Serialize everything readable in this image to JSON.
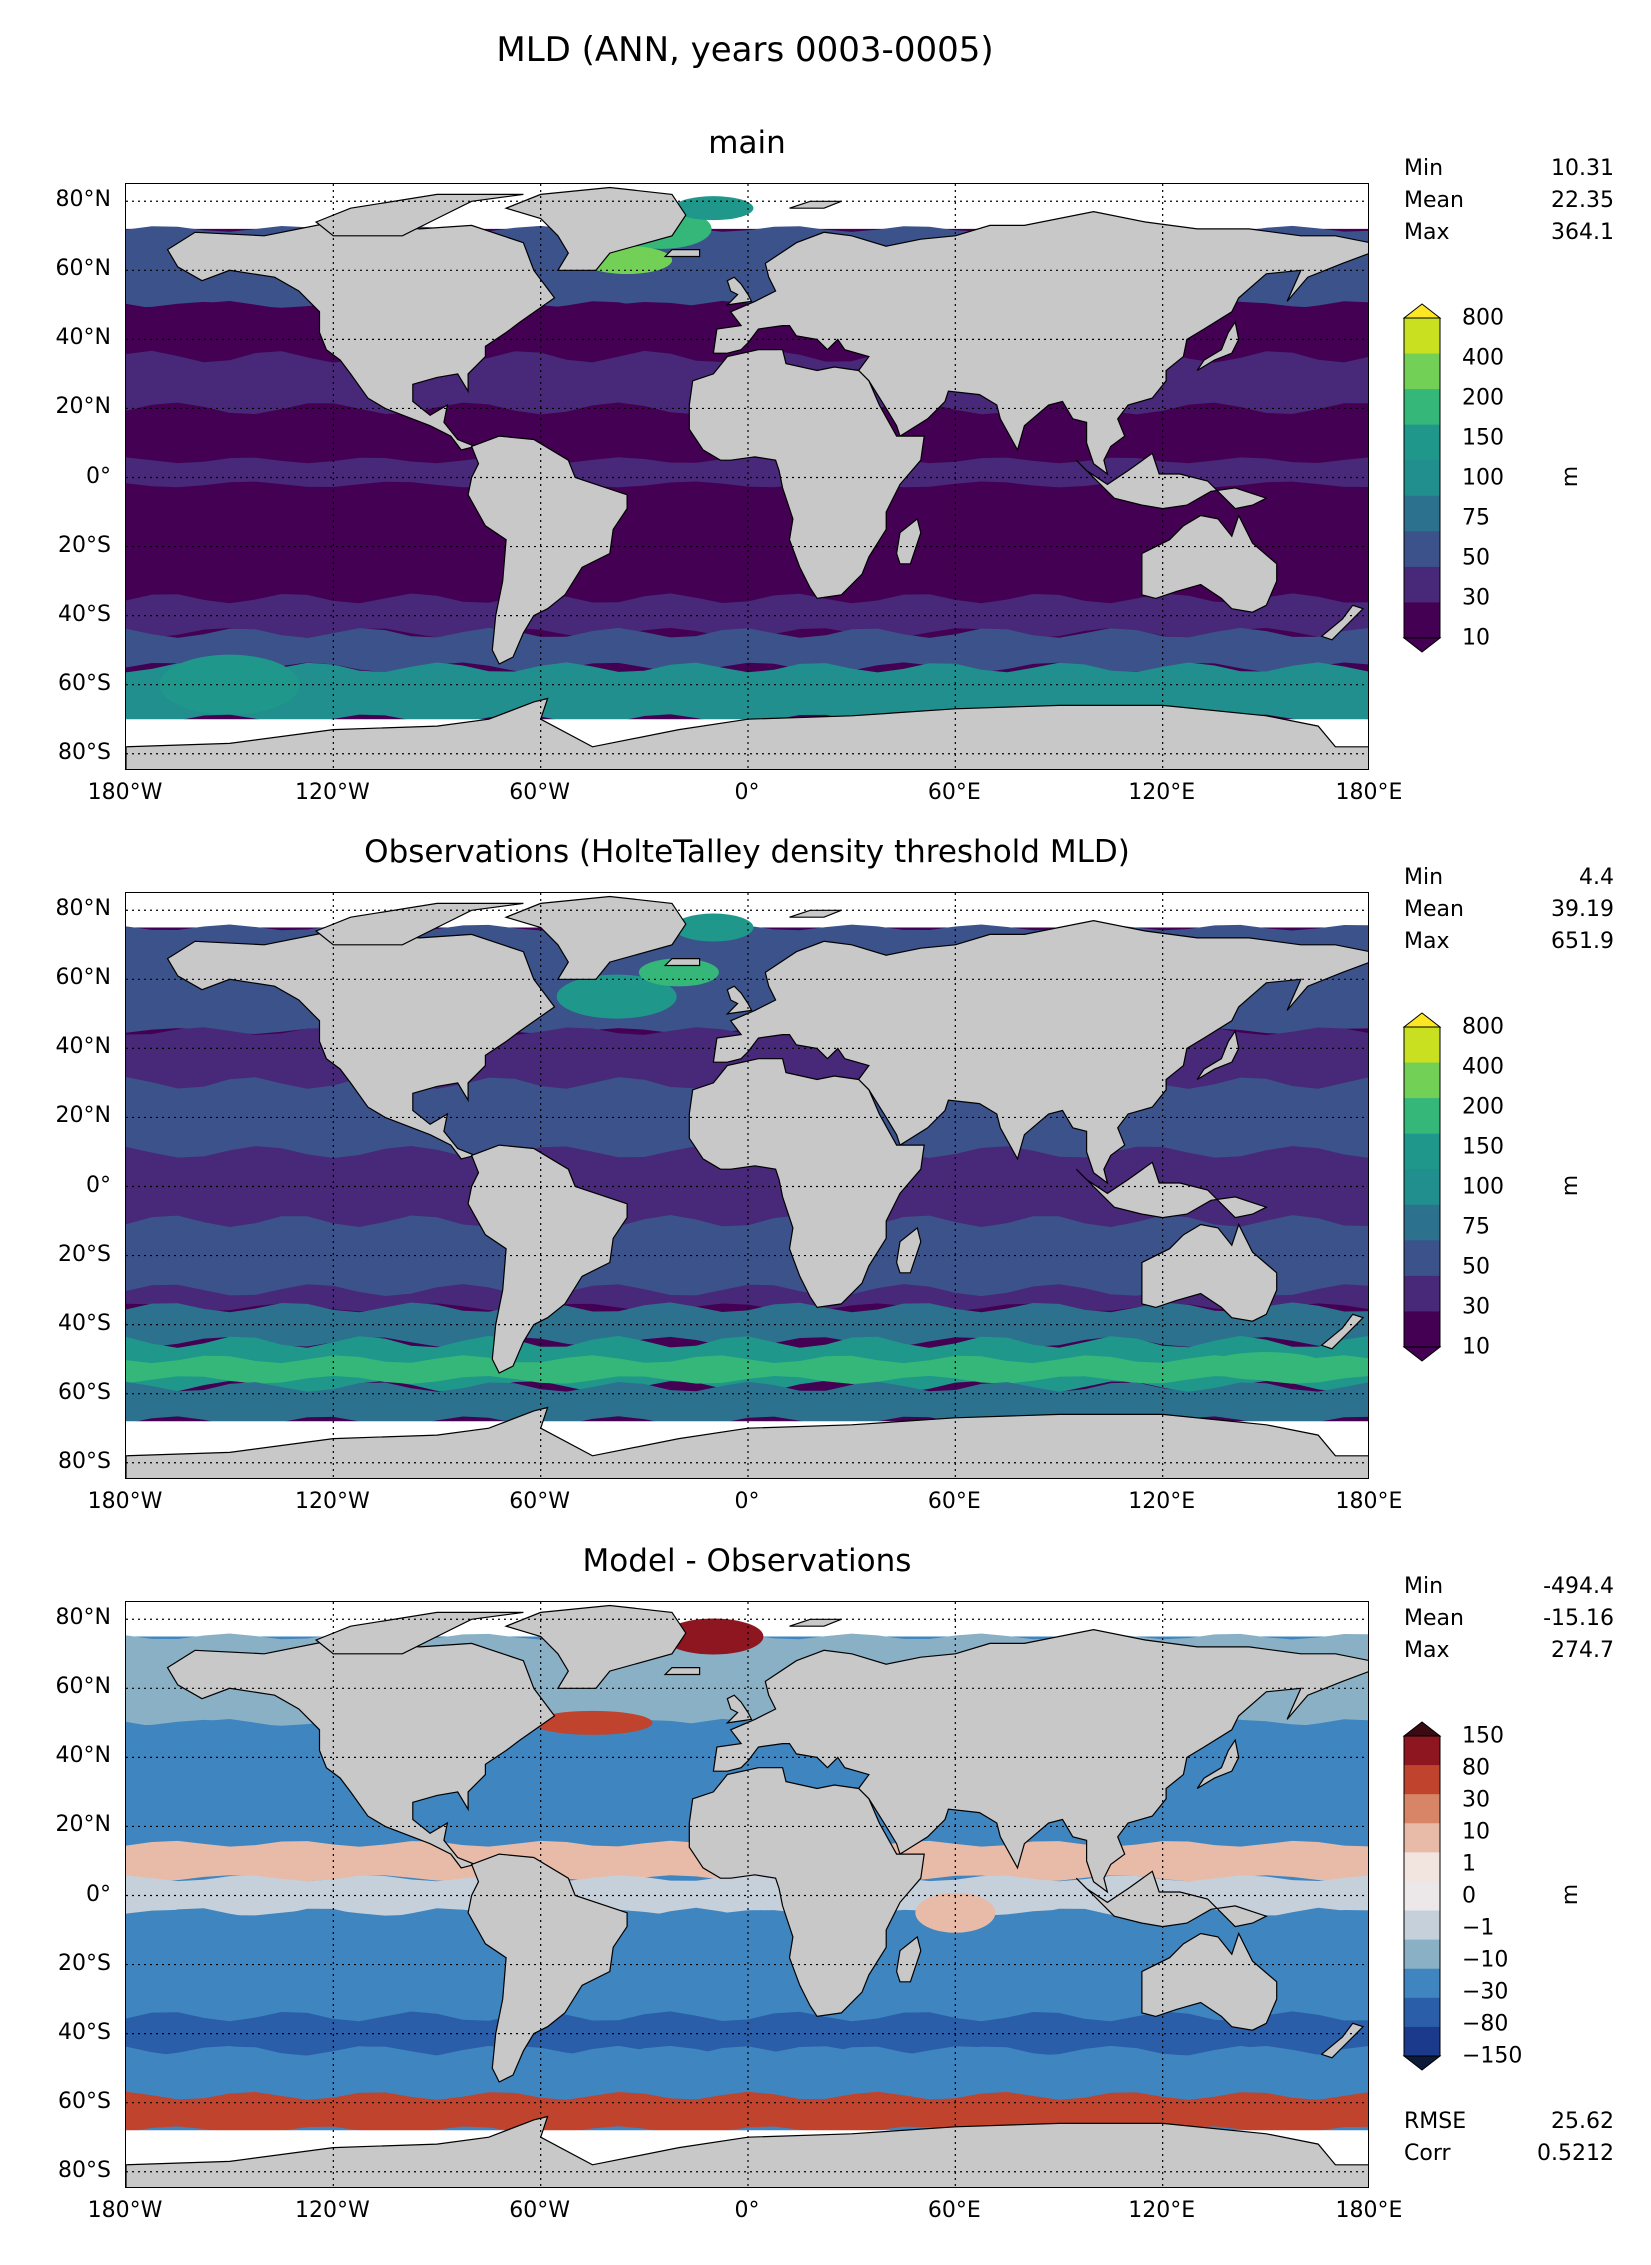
{
  "suptitle": "MLD (ANN, years 0003-0005)",
  "lat_labels": [
    "80°N",
    "60°N",
    "40°N",
    "20°N",
    "0°",
    "20°S",
    "40°S",
    "60°S",
    "80°S"
  ],
  "lon_labels": [
    "180°W",
    "120°W",
    "60°W",
    "0°",
    "60°E",
    "120°E",
    "180°E"
  ],
  "colors": {
    "land": "#c8c8c8",
    "nodata": "#ffffff",
    "grid": "#000000"
  },
  "panels": [
    {
      "title": "main",
      "stats": [
        {
          "label": "Min",
          "value": "10.31"
        },
        {
          "label": "Mean",
          "value": "22.35"
        },
        {
          "label": "Max",
          "value": "364.1"
        }
      ],
      "colorbar": {
        "unit": "m",
        "ticks": [
          "800",
          "400",
          "200",
          "150",
          "100",
          "75",
          "50",
          "30",
          "10"
        ],
        "colors": [
          "#c8e020",
          "#73d056",
          "#35b779",
          "#1f988b",
          "#218f8d",
          "#2c728e",
          "#3b528b",
          "#482878",
          "#440154"
        ],
        "over": "#fde725",
        "under": "#440154"
      }
    },
    {
      "title": "Observations (HolteTalley density threshold MLD)",
      "stats": [
        {
          "label": "Min",
          "value": "4.4"
        },
        {
          "label": "Mean",
          "value": "39.19"
        },
        {
          "label": "Max",
          "value": "651.9"
        }
      ],
      "colorbar": {
        "unit": "m",
        "ticks": [
          "800",
          "400",
          "200",
          "150",
          "100",
          "75",
          "50",
          "30",
          "10"
        ],
        "colors": [
          "#c8e020",
          "#73d056",
          "#35b779",
          "#1f988b",
          "#218f8d",
          "#2c728e",
          "#3b528b",
          "#482878",
          "#440154"
        ],
        "over": "#fde725",
        "under": "#440154"
      }
    },
    {
      "title": "Model - Observations",
      "stats": [
        {
          "label": "Min",
          "value": "-494.4"
        },
        {
          "label": "Mean",
          "value": "-15.16"
        },
        {
          "label": "Max",
          "value": "274.7"
        }
      ],
      "extra_stats": [
        {
          "label": "RMSE",
          "value": "25.62"
        },
        {
          "label": "Corr",
          "value": "0.5212"
        }
      ],
      "colorbar": {
        "unit": "m",
        "ticks": [
          "150",
          "80",
          "30",
          "10",
          "1",
          "0",
          "−1",
          "−10",
          "−30",
          "−80",
          "−150"
        ],
        "colors": [
          "#8e1620",
          "#c0432e",
          "#d88466",
          "#e8bba8",
          "#f2e4df",
          "#ece8ea",
          "#c5d0da",
          "#8ab0c5",
          "#3f85c0",
          "#2a5ea8",
          "#1c3a8c"
        ],
        "over": "#3b0b14",
        "under": "#0c1b3a"
      }
    }
  ]
}
